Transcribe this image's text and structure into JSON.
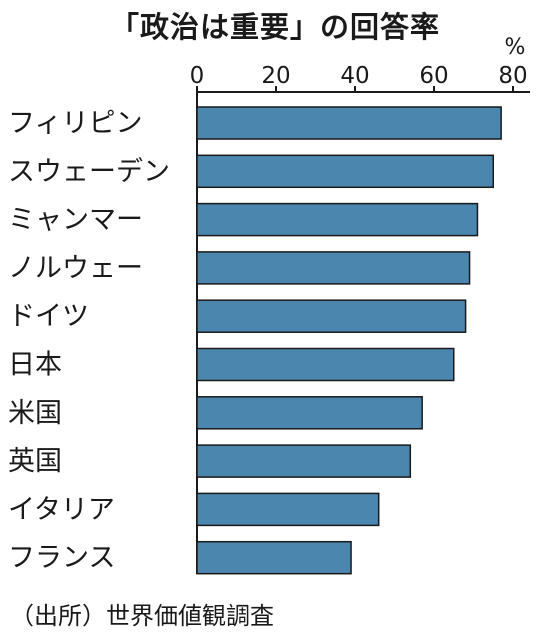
{
  "chart_data": {
    "type": "bar",
    "orientation": "horizontal",
    "title": "「政治は重要」の回答率",
    "unit": "%",
    "categories": [
      "フィリピン",
      "スウェーデン",
      "ミャンマー",
      "ノルウェー",
      "ドイツ",
      "日本",
      "米国",
      "英国",
      "イタリア",
      "フランス"
    ],
    "values": [
      77,
      75,
      71,
      69,
      68,
      65,
      57,
      54,
      46,
      39
    ],
    "ticks": [
      0,
      20,
      40,
      60,
      80
    ],
    "xlim": [
      0,
      80
    ],
    "grid": false,
    "bar_color": "#4a86ad",
    "source": "（出所）世界価値観調査"
  }
}
